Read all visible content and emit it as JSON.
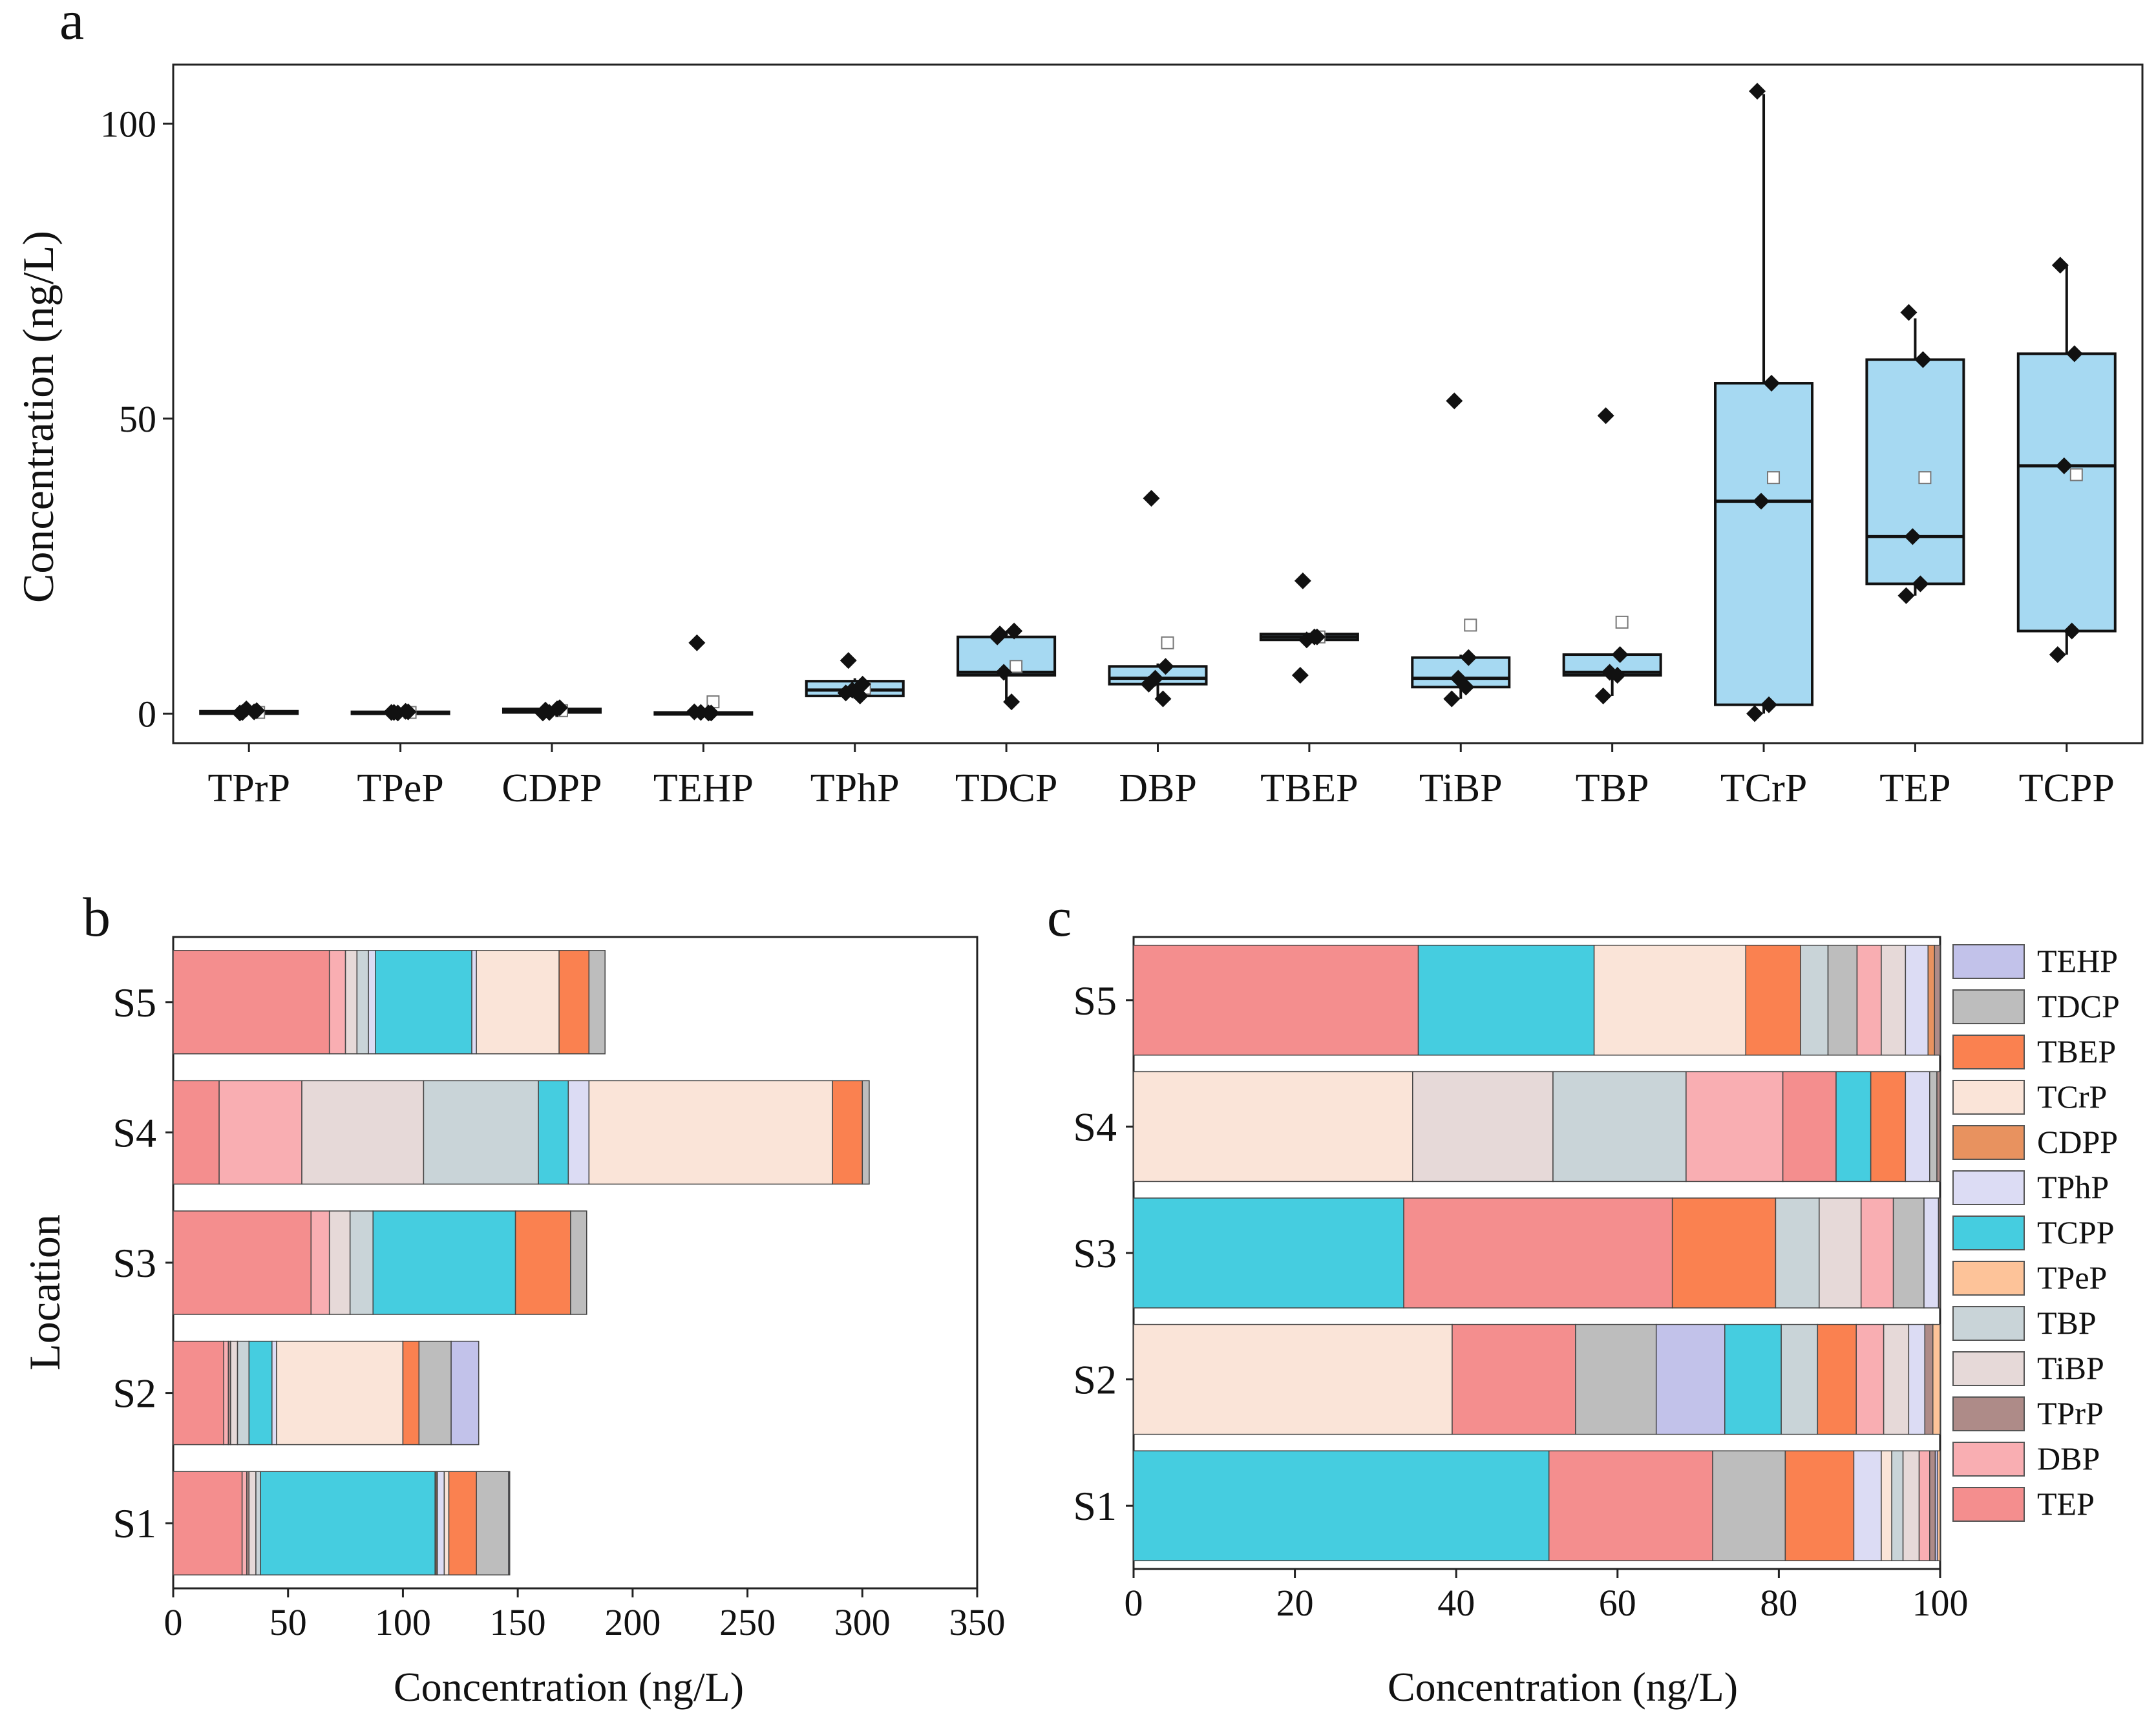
{
  "colors": {
    "box_fill": "#a6d9f2",
    "TEHP": "#c2c2ea",
    "TDCP": "#bdbdbd",
    "TBEP": "#fa8150",
    "TCrP": "#fae4d8",
    "CDPP": "#e8925f",
    "TPhP": "#dcdcf4",
    "TCPP": "#45cde0",
    "TPeP": "#fdc399",
    "TBP": "#c9d4d8",
    "TiBP": "#e6d9d8",
    "TPrP": "#ae8b88",
    "DBP": "#f9aeb2",
    "TEP": "#f48e8e"
  },
  "chart_data": [
    {
      "id": "a",
      "panel_label": "a",
      "type": "box",
      "ylabel": "Concentration (ng/L)",
      "ylim": [
        -5,
        110
      ],
      "yticks": [
        0,
        50,
        100
      ],
      "categories": [
        "TPrP",
        "TPeP",
        "CDPP",
        "TEHP",
        "TPhP",
        "TDCP",
        "DBP",
        "TBEP",
        "TiBP",
        "TBP",
        "TCrP",
        "TEP",
        "TCPP"
      ],
      "boxes": [
        {
          "name": "TPrP",
          "q1": 0,
          "median": 0.2,
          "q3": 0.4,
          "whisker_low": 0,
          "whisker_high": 0.5,
          "mean": 0.2,
          "points": [
            0.2,
            0.5,
            0.8,
            0.3,
            0.1
          ]
        },
        {
          "name": "TPeP",
          "q1": 0,
          "median": 0.2,
          "q3": 0.3,
          "whisker_low": 0,
          "whisker_high": 0.3,
          "mean": 0.2,
          "points": [
            0.2,
            0.3,
            0.1,
            0.4,
            0.2
          ]
        },
        {
          "name": "CDPP",
          "q1": 0.2,
          "median": 0.5,
          "q3": 0.8,
          "whisker_low": 0,
          "whisker_high": 1,
          "mean": 0.5,
          "points": [
            0.6,
            1,
            0.2,
            0.8,
            0.1
          ]
        },
        {
          "name": "TEHP",
          "q1": 0,
          "median": 0.1,
          "q3": 0.2,
          "whisker_low": 0,
          "whisker_high": 0.3,
          "mean": 2,
          "points": [
            12,
            0.1,
            0.2,
            0.1,
            0.3
          ]
        },
        {
          "name": "TPhP",
          "q1": 3,
          "median": 4,
          "q3": 5.5,
          "whisker_low": 2.5,
          "whisker_high": 6,
          "mean": 4.3,
          "points": [
            9,
            5,
            4,
            3,
            3.5
          ]
        },
        {
          "name": "TDCP",
          "q1": 6.5,
          "median": 7,
          "q3": 13,
          "whisker_low": 2,
          "whisker_high": 14,
          "mean": 8,
          "points": [
            13.5,
            14,
            7,
            2,
            13
          ]
        },
        {
          "name": "DBP",
          "q1": 5,
          "median": 6,
          "q3": 8,
          "whisker_low": 2.5,
          "whisker_high": 8.5,
          "mean": 12,
          "points": [
            36.5,
            8,
            6,
            2.5,
            5
          ]
        },
        {
          "name": "TBEP",
          "q1": 12.5,
          "median": 13,
          "q3": 13.5,
          "whisker_low": 12.5,
          "whisker_high": 13.5,
          "mean": 13,
          "points": [
            22.5,
            13,
            12.5,
            13,
            6.5
          ]
        },
        {
          "name": "TiBP",
          "q1": 4.5,
          "median": 6,
          "q3": 9.5,
          "whisker_low": 2.5,
          "whisker_high": 10,
          "mean": 15,
          "points": [
            53,
            9.5,
            6,
            4.5,
            2.5
          ]
        },
        {
          "name": "TBP",
          "q1": 6.5,
          "median": 7,
          "q3": 10,
          "whisker_low": 3,
          "whisker_high": 10,
          "mean": 15.5,
          "points": [
            50.5,
            10,
            7,
            6.5,
            3
          ]
        },
        {
          "name": "TCrP",
          "q1": 1.5,
          "median": 36,
          "q3": 56,
          "whisker_low": 0,
          "whisker_high": 105,
          "mean": 40,
          "points": [
            105.5,
            56,
            36,
            1.5,
            0
          ]
        },
        {
          "name": "TEP",
          "q1": 22,
          "median": 30,
          "q3": 60,
          "whisker_low": 20,
          "whisker_high": 67,
          "mean": 40,
          "points": [
            68,
            60,
            30,
            22,
            20
          ]
        },
        {
          "name": "TCPP",
          "q1": 14,
          "median": 42,
          "q3": 61,
          "whisker_low": 10,
          "whisker_high": 76,
          "mean": 40.5,
          "points": [
            76,
            61,
            42,
            14,
            10
          ]
        }
      ]
    },
    {
      "id": "b",
      "panel_label": "b",
      "type": "stacked-bar-horizontal",
      "xlabel": "Concentration (ng/L)",
      "ylabel": "Location",
      "xlim": [
        0,
        350
      ],
      "xticks": [
        0,
        50,
        100,
        150,
        200,
        250,
        300,
        350
      ],
      "categories": [
        "S1",
        "S2",
        "S3",
        "S4",
        "S5"
      ],
      "rows": [
        {
          "name": "S1",
          "segments": [
            [
              "TEP",
              30
            ],
            [
              "DBP",
              2
            ],
            [
              "TPrP",
              1
            ],
            [
              "TiBP",
              3
            ],
            [
              "TBP",
              2
            ],
            [
              "TCPP",
              76
            ],
            [
              "TPeP",
              0.5
            ],
            [
              "CDPP",
              0.5
            ],
            [
              "TPhP",
              3
            ],
            [
              "TCrP",
              2
            ],
            [
              "TBEP",
              12
            ],
            [
              "TDCP",
              14
            ],
            [
              "TEHP",
              0.5
            ]
          ]
        },
        {
          "name": "S2",
          "segments": [
            [
              "TEP",
              22
            ],
            [
              "DBP",
              2
            ],
            [
              "TPrP",
              1
            ],
            [
              "TiBP",
              3
            ],
            [
              "TBP",
              5
            ],
            [
              "TCPP",
              10
            ],
            [
              "TPhP",
              2
            ],
            [
              "TCrP",
              55
            ],
            [
              "TBEP",
              7
            ],
            [
              "TDCP",
              14
            ],
            [
              "TEHP",
              12
            ]
          ]
        },
        {
          "name": "S3",
          "segments": [
            [
              "TEP",
              60
            ],
            [
              "DBP",
              8
            ],
            [
              "TiBP",
              9
            ],
            [
              "TBP",
              10
            ],
            [
              "TCPP",
              62
            ],
            [
              "TBEP",
              24
            ],
            [
              "TDCP",
              7
            ]
          ]
        },
        {
          "name": "S4",
          "segments": [
            [
              "TEP",
              20
            ],
            [
              "DBP",
              36
            ],
            [
              "TiBP",
              53
            ],
            [
              "TBP",
              50
            ],
            [
              "TCPP",
              13
            ],
            [
              "TPhP",
              9
            ],
            [
              "TCrP",
              106
            ],
            [
              "TBEP",
              13
            ],
            [
              "TDCP",
              3
            ]
          ]
        },
        {
          "name": "S5",
          "segments": [
            [
              "TEP",
              68
            ],
            [
              "DBP",
              7
            ],
            [
              "TiBP",
              5
            ],
            [
              "TBP",
              5
            ],
            [
              "TPhP",
              3
            ],
            [
              "TCPP",
              42
            ],
            [
              "TPhP",
              2
            ],
            [
              "TCrP",
              36
            ],
            [
              "TBEP",
              13
            ],
            [
              "TDCP",
              7
            ]
          ]
        }
      ]
    },
    {
      "id": "c",
      "panel_label": "c",
      "type": "stacked-bar-horizontal-percent",
      "xlabel": "Concentration (ng/L)",
      "xlim": [
        0,
        100
      ],
      "xticks": [
        0,
        20,
        40,
        60,
        80,
        100
      ],
      "categories": [
        "S1",
        "S2",
        "S3",
        "S4",
        "S5"
      ],
      "legend": [
        "TEHP",
        "TDCP",
        "TBEP",
        "TCrP",
        "CDPP",
        "TPhP",
        "TCPP",
        "TPeP",
        "TBP",
        "TiBP",
        "TPrP",
        "DBP",
        "TEP"
      ],
      "rows": [
        {
          "name": "S1",
          "segments": [
            [
              "TCPP",
              51.5
            ],
            [
              "TEP",
              20.3
            ],
            [
              "TDCP",
              9
            ],
            [
              "TBEP",
              8.5
            ],
            [
              "TPhP",
              3.4
            ],
            [
              "TCrP",
              1.3
            ],
            [
              "TBP",
              1.4
            ],
            [
              "TiBP",
              2
            ],
            [
              "DBP",
              1.3
            ],
            [
              "TPrP",
              0.7
            ],
            [
              "TEHP",
              0.3
            ],
            [
              "TPeP",
              0.3
            ]
          ]
        },
        {
          "name": "S2",
          "segments": [
            [
              "TCrP",
              39.5
            ],
            [
              "TEP",
              15.3
            ],
            [
              "TDCP",
              10
            ],
            [
              "TEHP",
              8.5
            ],
            [
              "TCPP",
              7
            ],
            [
              "TBP",
              4.5
            ],
            [
              "TBEP",
              4.8
            ],
            [
              "DBP",
              3.4
            ],
            [
              "TiBP",
              3.1
            ],
            [
              "TPhP",
              2
            ],
            [
              "TPrP",
              1
            ],
            [
              "TPeP",
              0.9
            ]
          ]
        },
        {
          "name": "S3",
          "segments": [
            [
              "TCPP",
              33.5
            ],
            [
              "TEP",
              33.3
            ],
            [
              "TBEP",
              12.8
            ],
            [
              "TBP",
              5.4
            ],
            [
              "TiBP",
              5.2
            ],
            [
              "DBP",
              4
            ],
            [
              "TDCP",
              3.8
            ],
            [
              "TPhP",
              1.8
            ],
            [
              "TPrP",
              0.2
            ]
          ]
        },
        {
          "name": "S4",
          "segments": [
            [
              "TCrP",
              34.6
            ],
            [
              "TiBP",
              17.4
            ],
            [
              "TBP",
              16.5
            ],
            [
              "DBP",
              12
            ],
            [
              "TEP",
              6.6
            ],
            [
              "TCPP",
              4.3
            ],
            [
              "TBEP",
              4.3
            ],
            [
              "TPhP",
              3
            ],
            [
              "TDCP",
              0.9
            ],
            [
              "TPrP",
              0.4
            ]
          ]
        },
        {
          "name": "S5",
          "segments": [
            [
              "TEP",
              35.3
            ],
            [
              "TCPP",
              21.8
            ],
            [
              "TCrP",
              18.8
            ],
            [
              "TBEP",
              6.8
            ],
            [
              "TBP",
              3.4
            ],
            [
              "TDCP",
              3.6
            ],
            [
              "DBP",
              3
            ],
            [
              "TiBP",
              3
            ],
            [
              "TPhP",
              2.8
            ],
            [
              "CDPP",
              0.8
            ],
            [
              "TPrP",
              0.7
            ]
          ]
        }
      ]
    }
  ]
}
